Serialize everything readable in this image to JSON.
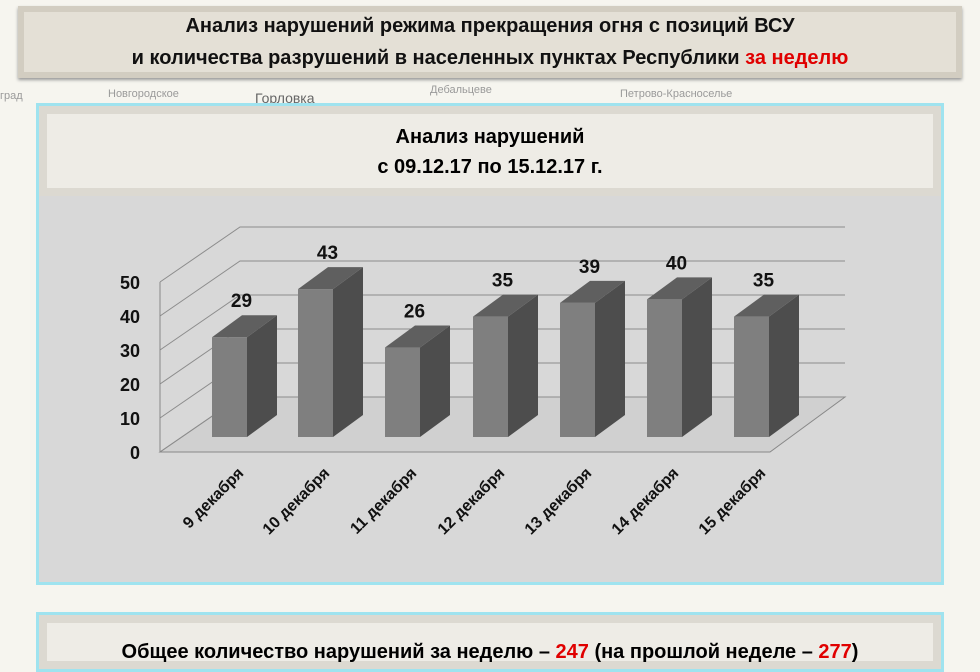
{
  "title": {
    "line1": "Анализ нарушений режима прекращения огня с позиций ВСУ",
    "line2_prefix": "и количества разрушений в населенных пунктах Республики",
    "line2_highlight": "за неделю"
  },
  "map_labels": [
    "Горловка",
    "Новгородское",
    "Дебальцеве",
    "Петрово-Красноселье"
  ],
  "panel": {
    "title": "Анализ нарушений",
    "period": "с 09.12.17 по 15.12.17 г."
  },
  "chart_data": {
    "type": "bar",
    "style": "3d-column",
    "categories": [
      "9 декабря",
      "10 декабря",
      "11 декабря",
      "12 декабря",
      "13 декабря",
      "14 декабря",
      "15 декабря"
    ],
    "values": [
      29,
      43,
      26,
      35,
      39,
      40,
      35
    ],
    "ylim": [
      0,
      50
    ],
    "yticks": [
      0,
      10,
      20,
      30,
      40,
      50
    ],
    "grid": true,
    "bar_color": "#7f7f7f"
  },
  "summary": {
    "prefix": "Общее количество нарушений за неделю –",
    "total": "247",
    "middle": "(на прошлой неделе –",
    "prev": "277",
    "suffix": ")"
  }
}
